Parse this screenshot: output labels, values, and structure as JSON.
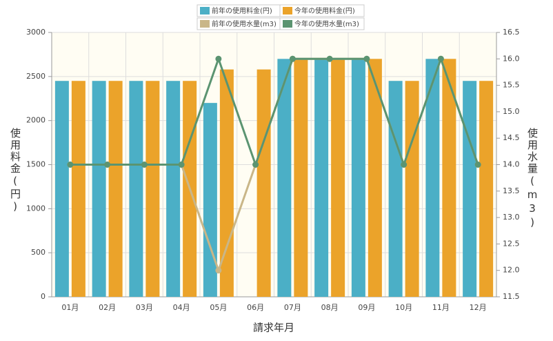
{
  "chart_data": {
    "type": "bar-line",
    "x_label": "請求年月",
    "y_label": "使用料金(円)",
    "y2_label": "使用水量(m3)",
    "categories": [
      "01月",
      "02月",
      "03月",
      "04月",
      "05月",
      "06月",
      "07月",
      "08月",
      "09月",
      "10月",
      "11月",
      "12月"
    ],
    "series": [
      {
        "name": "前年の使用料金(円)",
        "color": "#4bafc6",
        "kind": "bar",
        "values": [
          2450,
          2450,
          2450,
          2450,
          2200,
          null,
          2700,
          2700,
          2700,
          2450,
          2700,
          2450
        ]
      },
      {
        "name": "今年の使用料金(円)",
        "color": "#eba32a",
        "kind": "bar",
        "values": [
          2450,
          2450,
          2450,
          2450,
          2580,
          2580,
          2700,
          2700,
          2700,
          2450,
          2700,
          2450
        ]
      },
      {
        "name": "前年の使用水量(m3)",
        "color": "#c9b688",
        "kind": "line",
        "axis": "y2",
        "values": [
          14,
          14,
          14,
          14,
          12,
          14,
          16,
          16,
          16,
          14,
          16,
          14
        ]
      },
      {
        "name": "今年の使用水量(m3)",
        "color": "#5b9471",
        "kind": "line",
        "axis": "y2",
        "values": [
          14,
          14,
          14,
          14,
          16,
          14,
          16,
          16,
          16,
          14,
          16,
          14
        ]
      }
    ],
    "ylim": [
      0,
      3000
    ],
    "yticks": [
      0,
      500,
      1000,
      1500,
      2000,
      2500,
      3000
    ],
    "y2lim": [
      11.5,
      16.5
    ],
    "y2ticks": [
      11.5,
      {
        "value": 12,
        "label": "12.0"
      },
      12.5,
      {
        "value": 13,
        "label": "13.0"
      },
      13.5,
      {
        "value": 14,
        "label": "14.0"
      },
      14.5,
      {
        "value": 15,
        "label": "15.0"
      },
      15.5,
      {
        "value": 16,
        "label": "16.0"
      },
      16.5
    ],
    "grid": true
  }
}
